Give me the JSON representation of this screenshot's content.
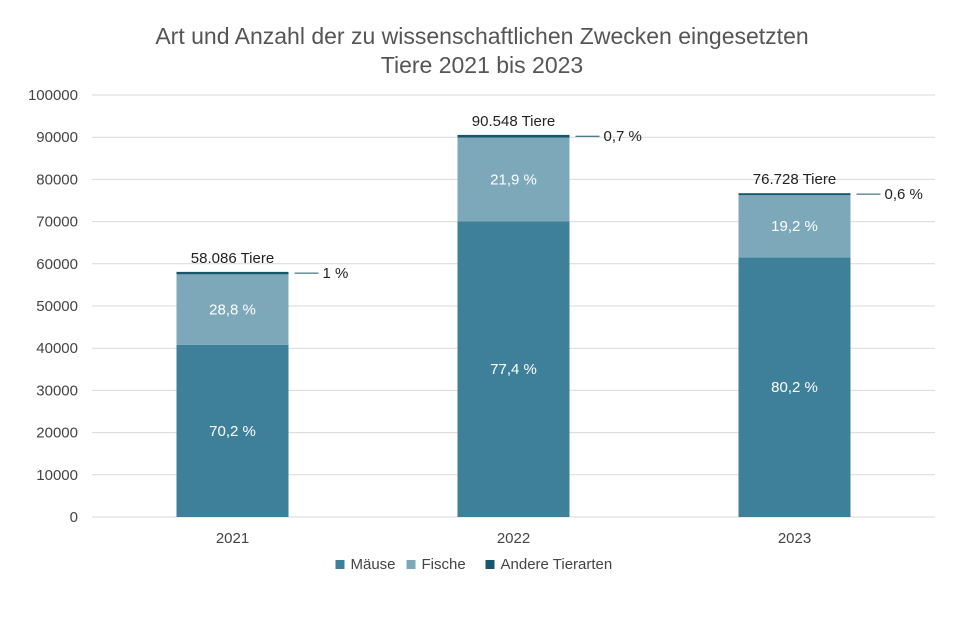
{
  "chart_data": {
    "type": "bar",
    "stacked": true,
    "title_lines": [
      "Art und Anzahl der zu wissenschaftlichen Zwecken eingesetzten",
      "Tiere 2021 bis 2023"
    ],
    "categories": [
      "2021",
      "2022",
      "2023"
    ],
    "ylim": [
      0,
      100000
    ],
    "yticks": [
      "0",
      "10000",
      "20000",
      "30000",
      "40000",
      "50000",
      "60000",
      "70000",
      "80000",
      "90000",
      "100000"
    ],
    "grid": true,
    "legend_position": "bottom",
    "series": [
      {
        "name": "Mäuse",
        "color": "#3e7f99",
        "values": [
          40776,
          70084,
          61536
        ],
        "labels": [
          "70,2 %",
          "77,4 %",
          "80,2 %"
        ]
      },
      {
        "name": "Fische",
        "color": "#7da8ba",
        "values": [
          16729,
          19830,
          14732
        ],
        "labels": [
          "28,8 %",
          "21,9 %",
          "19,2 %"
        ]
      },
      {
        "name": "Andere Tierarten",
        "color": "#17576b",
        "values": [
          581,
          634,
          460
        ],
        "labels": [
          "1 %",
          "0,7 %",
          "0,6 %"
        ]
      }
    ],
    "totals": [
      58086,
      90548,
      76728
    ],
    "total_labels": [
      "58.086 Tiere",
      "90.548 Tiere",
      "76.728 Tiere"
    ]
  }
}
